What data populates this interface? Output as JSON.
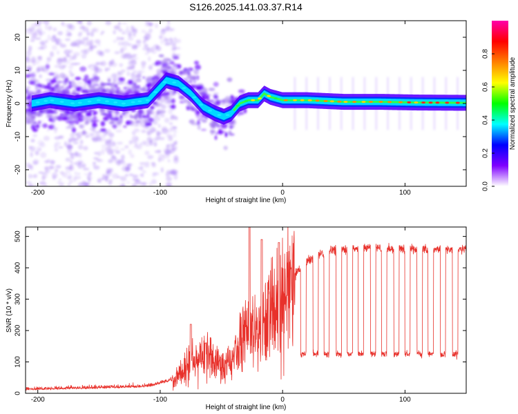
{
  "title": "S126.2025.141.03.37.R14",
  "chart_data": [
    {
      "type": "heatmap",
      "xlabel": "Height of straight line (km)",
      "ylabel": "Frequency (Hz)",
      "xlim": [
        -210,
        150
      ],
      "ylim": [
        -25,
        25
      ],
      "xticks": [
        -200,
        -100,
        0,
        100
      ],
      "yticks": [
        -20,
        -10,
        0,
        10,
        20
      ],
      "colorbar": {
        "label": "Normalized spectral amplitude",
        "range": [
          0,
          1
        ],
        "ticks": [
          "0.0",
          "0.2",
          "0.4",
          "0.6",
          "0.8"
        ],
        "colors": [
          "#ffffff",
          "#7f00ff",
          "#0000ff",
          "#00ffff",
          "#00ff00",
          "#ffff00",
          "#ff8000",
          "#ff0000",
          "#ff00aa"
        ]
      },
      "ridge_frequency": {
        "x": [
          -205,
          -190,
          -170,
          -150,
          -130,
          -110,
          -95,
          -85,
          -75,
          -65,
          -55,
          -48,
          -42,
          -35,
          -28,
          -20,
          -15,
          -10,
          0,
          20,
          50,
          80,
          110,
          150
        ],
        "y": [
          0,
          1,
          0,
          1,
          0,
          1,
          7,
          6,
          3,
          -1,
          -3,
          -4,
          -3,
          0,
          1,
          1,
          3,
          2,
          1,
          1,
          0.5,
          0.5,
          0.3,
          0.2
        ]
      }
    },
    {
      "type": "line",
      "xlabel": "Height of straight line (km)",
      "ylabel": "SNR (10 * v/v)",
      "xlim": [
        -210,
        150
      ],
      "ylim": [
        0,
        530
      ],
      "xticks": [
        -200,
        -100,
        0,
        100
      ],
      "yticks": [
        0,
        100,
        200,
        300,
        400,
        500
      ],
      "color": "#e8312b",
      "envelope": {
        "x": [
          -210,
          -150,
          -110,
          -90,
          -70,
          -60,
          -50,
          -40,
          -30,
          -20,
          -10,
          0,
          10,
          20,
          30,
          40,
          60,
          80,
          100,
          150
        ],
        "y": [
          10,
          15,
          20,
          40,
          110,
          120,
          90,
          100,
          200,
          230,
          270,
          300,
          380,
          420,
          440,
          455,
          462,
          462,
          460,
          460
        ]
      },
      "dropouts": {
        "x": [
          17,
          27,
          36,
          46,
          55,
          64,
          74,
          83,
          93,
          102,
          112,
          121,
          131,
          141
        ],
        "low_value": 125
      },
      "peaks": {
        "x": [
          -75,
          -63,
          -27,
          -17,
          -3
        ],
        "y": [
          220,
          160,
          530,
          490,
          480
        ]
      }
    }
  ]
}
